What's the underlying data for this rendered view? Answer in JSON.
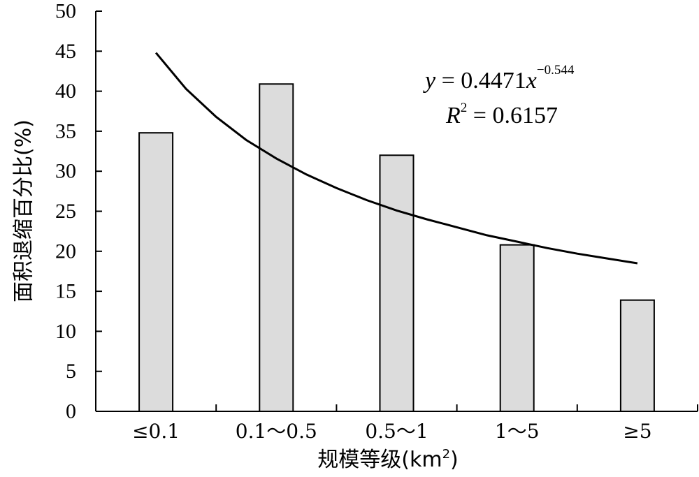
{
  "chart_data": {
    "type": "bar",
    "categories": [
      "≤0.1",
      "0.1～0.5",
      "0.5～1",
      "1～5",
      "≥5"
    ],
    "values": [
      34.8,
      40.9,
      32.0,
      20.8,
      13.9
    ],
    "xlabel_main": "规模等级(km",
    "xlabel_sup": "2",
    "xlabel_tail": ")",
    "ylabel": "面积退缩百分比(%)",
    "ylim": [
      0,
      50
    ],
    "yticks": [
      0,
      5,
      10,
      15,
      20,
      25,
      30,
      35,
      40,
      45,
      50
    ],
    "bar_color": "#dcdcdc",
    "trendline": {
      "type": "power",
      "x": [
        1.0,
        1.25,
        1.5,
        1.75,
        2.0,
        2.25,
        2.5,
        2.75,
        3.0,
        3.25,
        3.5,
        3.75,
        4.0,
        4.25,
        4.5,
        4.75,
        5.0
      ],
      "y": [
        44.8,
        40.3,
        36.8,
        33.9,
        31.6,
        29.6,
        27.9,
        26.4,
        25.1,
        24.0,
        23.0,
        22.0,
        21.2,
        20.4,
        19.7,
        19.1,
        18.5
      ],
      "equation": {
        "y_var": "y",
        "eq_sign": " = 0.4471",
        "x_var": "x",
        "exponent": "−0.544"
      },
      "r_squared": {
        "r_var": "R",
        "r_sup": "2",
        "value": " = 0.6157"
      }
    }
  }
}
